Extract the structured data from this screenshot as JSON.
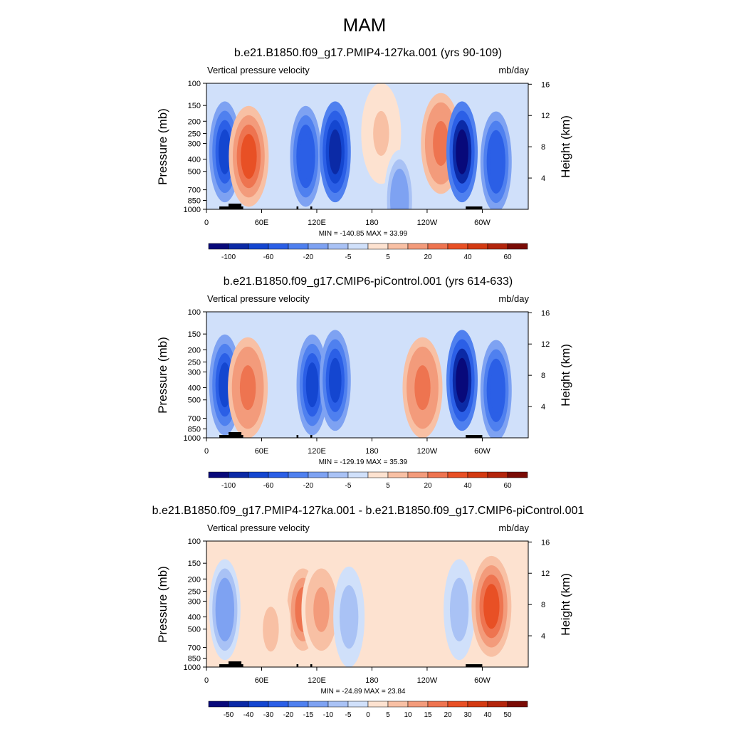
{
  "figure_title": "MAM",
  "chart_data": [
    {
      "type": "heatmap",
      "title": "b.e21.B1850.f09_g17.PMIP4-127ka.001 (yrs 90-109)",
      "left_label": "Vertical pressure velocity",
      "right_label": "mb/day",
      "ylabel": "Pressure (mb)",
      "ylabel_right": "Height (km)",
      "x_ticks": [
        "0",
        "60E",
        "120E",
        "180",
        "120W",
        "60W"
      ],
      "x_tick_values": [
        0,
        60,
        120,
        180,
        240,
        300
      ],
      "xlim": [
        0,
        350
      ],
      "y_ticks": [
        "100",
        "150",
        "200",
        "250",
        "300",
        "400",
        "500",
        "700",
        "850",
        "1000"
      ],
      "y_tick_values": [
        100,
        150,
        200,
        250,
        300,
        400,
        500,
        700,
        850,
        1000
      ],
      "ylim": [
        1000,
        100
      ],
      "log_y": true,
      "height_ticks": [
        "16",
        "12",
        "8",
        "4"
      ],
      "height_tick_values": [
        16,
        12,
        8,
        4
      ],
      "stats": "MIN = -140.85  MAX =  33.99",
      "min": -140.85,
      "max": 33.99,
      "colorbar_labels": [
        "-100",
        "-60",
        "-20",
        "-5",
        "5",
        "20",
        "40",
        "60"
      ],
      "colorbar_levels": [
        -120,
        -100,
        -80,
        -60,
        -40,
        -20,
        -10,
        -5,
        0,
        5,
        10,
        20,
        30,
        40,
        50,
        60
      ],
      "cells": [
        {
          "lon": 20,
          "p": 350,
          "v": -80
        },
        {
          "lon": 46,
          "p": 380,
          "v": 30
        },
        {
          "lon": 108,
          "p": 380,
          "v": -60
        },
        {
          "lon": 140,
          "p": 350,
          "v": -90
        },
        {
          "lon": 190,
          "p": 250,
          "v": 5
        },
        {
          "lon": 255,
          "p": 300,
          "v": 20
        },
        {
          "lon": 278,
          "p": 350,
          "v": -120
        },
        {
          "lon": 315,
          "p": 420,
          "v": -60
        },
        {
          "lon": 210,
          "p": 850,
          "v": -20
        }
      ]
    },
    {
      "type": "heatmap",
      "title": "b.e21.B1850.f09_g17.CMIP6-piControl.001 (yrs 614-633)",
      "left_label": "Vertical pressure velocity",
      "right_label": "mb/day",
      "ylabel": "Pressure (mb)",
      "ylabel_right": "Height (km)",
      "x_ticks": [
        "0",
        "60E",
        "120E",
        "180",
        "120W",
        "60W"
      ],
      "x_tick_values": [
        0,
        60,
        120,
        180,
        240,
        300
      ],
      "xlim": [
        0,
        350
      ],
      "y_ticks": [
        "100",
        "150",
        "200",
        "250",
        "300",
        "400",
        "500",
        "700",
        "850",
        "1000"
      ],
      "y_tick_values": [
        100,
        150,
        200,
        250,
        300,
        400,
        500,
        700,
        850,
        1000
      ],
      "ylim": [
        1000,
        100
      ],
      "log_y": true,
      "height_ticks": [
        "16",
        "12",
        "8",
        "4"
      ],
      "height_tick_values": [
        16,
        12,
        8,
        4
      ],
      "stats": "MIN = -129.19  MAX =  35.39",
      "min": -129.19,
      "max": 35.39,
      "colorbar_labels": [
        "-100",
        "-60",
        "-20",
        "-5",
        "5",
        "20",
        "40",
        "60"
      ],
      "colorbar_levels": [
        -120,
        -100,
        -80,
        -60,
        -40,
        -20,
        -10,
        -5,
        0,
        5,
        10,
        20,
        30,
        40,
        50,
        60
      ],
      "cells": [
        {
          "lon": 20,
          "p": 380,
          "v": -70
        },
        {
          "lon": 45,
          "p": 400,
          "v": 25
        },
        {
          "lon": 115,
          "p": 380,
          "v": -70
        },
        {
          "lon": 140,
          "p": 350,
          "v": -80
        },
        {
          "lon": 235,
          "p": 400,
          "v": 25
        },
        {
          "lon": 278,
          "p": 350,
          "v": -110
        },
        {
          "lon": 315,
          "p": 420,
          "v": -60
        }
      ]
    },
    {
      "type": "heatmap",
      "title": "b.e21.B1850.f09_g17.PMIP4-127ka.001 - b.e21.B1850.f09_g17.CMIP6-piControl.001",
      "left_label": "Vertical pressure velocity",
      "right_label": "mb/day",
      "ylabel": "Pressure (mb)",
      "ylabel_right": "Height (km)",
      "x_ticks": [
        "0",
        "60E",
        "120E",
        "180",
        "120W",
        "60W"
      ],
      "x_tick_values": [
        0,
        60,
        120,
        180,
        240,
        300
      ],
      "xlim": [
        0,
        350
      ],
      "y_ticks": [
        "100",
        "150",
        "200",
        "250",
        "300",
        "400",
        "500",
        "700",
        "850",
        "1000"
      ],
      "y_tick_values": [
        100,
        150,
        200,
        250,
        300,
        400,
        500,
        700,
        850,
        1000
      ],
      "ylim": [
        1000,
        100
      ],
      "log_y": true,
      "height_ticks": [
        "16",
        "12",
        "8",
        "4"
      ],
      "height_tick_values": [
        16,
        12,
        8,
        4
      ],
      "stats": "MIN = -24.89  MAX =  23.84",
      "min": -24.89,
      "max": 23.84,
      "colorbar_labels": [
        "-50",
        "-40",
        "-30",
        "-20",
        "-15",
        "-10",
        "-5",
        "0",
        "5",
        "10",
        "15",
        "20",
        "30",
        "40",
        "50"
      ],
      "colorbar_levels": [
        -55,
        -50,
        -40,
        -30,
        -20,
        -15,
        -10,
        -5,
        0,
        5,
        10,
        15,
        20,
        30,
        40,
        50
      ],
      "cells": [
        {
          "lon": 20,
          "p": 350,
          "v": -15
        },
        {
          "lon": 105,
          "p": 350,
          "v": 15
        },
        {
          "lon": 125,
          "p": 350,
          "v": 10
        },
        {
          "lon": 155,
          "p": 400,
          "v": -10
        },
        {
          "lon": 275,
          "p": 350,
          "v": -10
        },
        {
          "lon": 310,
          "p": 330,
          "v": 20
        },
        {
          "lon": 70,
          "p": 500,
          "v": 5
        }
      ]
    }
  ],
  "colors": {
    "palette": [
      "#08097a",
      "#0b2aa6",
      "#1446d0",
      "#2b5fe6",
      "#4f80ef",
      "#7ea2f2",
      "#a9c2f5",
      "#d0e0fa",
      "#fde2d0",
      "#f8c0a4",
      "#f39b7b",
      "#ee7450",
      "#e85025",
      "#d33a12",
      "#b3250c",
      "#7a0b05"
    ],
    "topography": "#000000"
  }
}
